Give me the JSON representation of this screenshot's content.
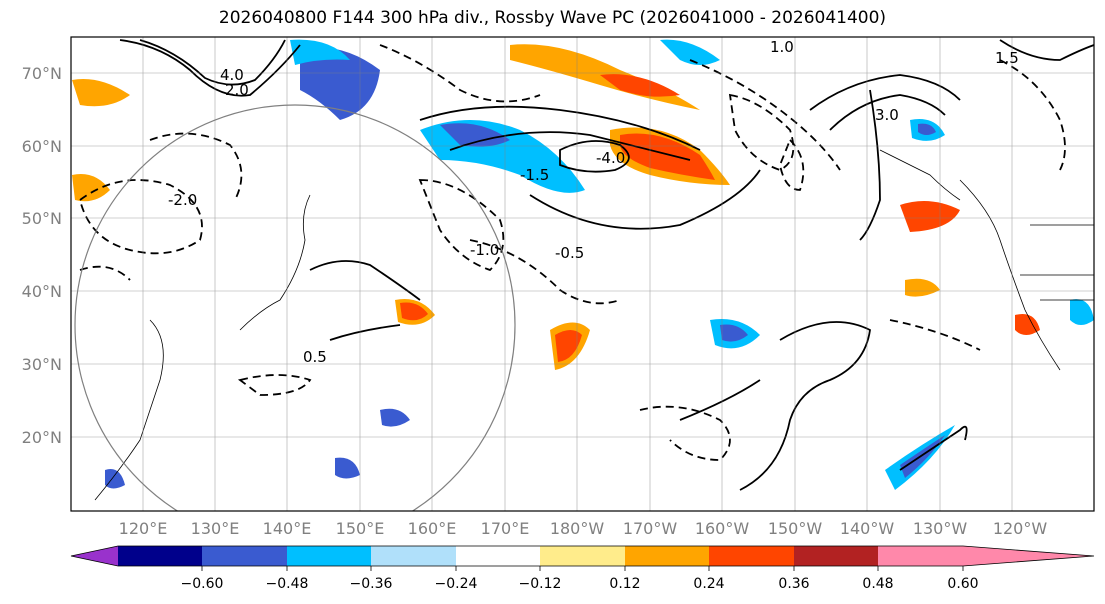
{
  "title": "2026040800 F144 300 hPa div., Rossby Wave PC (2026041000 - 2026041400)",
  "latitude_labels": [
    "70°N",
    "60°N",
    "50°N",
    "40°N",
    "30°N",
    "20°N"
  ],
  "longitude_labels": [
    "120°E",
    "130°E",
    "140°E",
    "150°E",
    "160°E",
    "170°E",
    "180°W",
    "170°W",
    "160°W",
    "150°W",
    "140°W",
    "130°W",
    "120°W"
  ],
  "contour_labels": [
    "-0.5",
    "-1.0",
    "-1.5",
    "-2.0",
    "-4.0",
    "0.5",
    "1.0",
    "1.5",
    "2.0",
    "3.0",
    "4.0"
  ],
  "colorbar": {
    "ticks": [
      "−0.60",
      "−0.48",
      "−0.36",
      "−0.24",
      "−0.12",
      "0.12",
      "0.24",
      "0.36",
      "0.48",
      "0.60"
    ],
    "colors": [
      "#9932cc",
      "#00008b",
      "#3a5bd0",
      "#00bfff",
      "#b0e0fa",
      "#ffffff",
      "#ffec8b",
      "#ffa500",
      "#ff4500",
      "#b22222",
      "#ff88aa"
    ]
  }
}
